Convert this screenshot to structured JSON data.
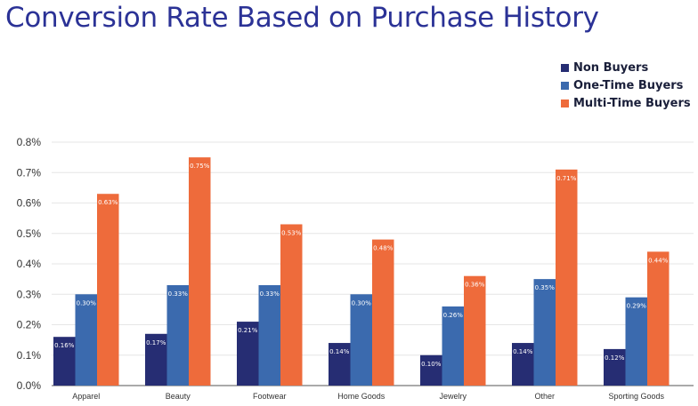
{
  "chart_data": {
    "type": "bar",
    "title": "Conversion Rate Based on Purchase History",
    "xlabel": "",
    "ylabel": "",
    "ylim": [
      0,
      0.8
    ],
    "yticks": [
      "0.0%",
      "0.1%",
      "0.2%",
      "0.3%",
      "0.4%",
      "0.5%",
      "0.6%",
      "0.7%",
      "0.8%"
    ],
    "grid": true,
    "legend_position": "top-right",
    "categories": [
      "Apparel",
      "Beauty",
      "Footwear",
      "Home Goods",
      "Jewelry",
      "Other",
      "Sporting Goods"
    ],
    "series": [
      {
        "name": "Non Buyers",
        "color": "#262d73",
        "values": [
          0.16,
          0.17,
          0.21,
          0.14,
          0.1,
          0.14,
          0.12
        ],
        "labels": [
          "0.16%",
          "0.17%",
          "0.21%",
          "0.14%",
          "0.10%",
          "0.14%",
          "0.12%"
        ]
      },
      {
        "name": "One-Time Buyers",
        "color": "#3b6aae",
        "values": [
          0.3,
          0.33,
          0.33,
          0.3,
          0.26,
          0.35,
          0.29
        ],
        "labels": [
          "0.30%",
          "0.33%",
          "0.33%",
          "0.30%",
          "0.26%",
          "0.35%",
          "0.29%"
        ]
      },
      {
        "name": "Multi-Time Buyers",
        "color": "#ee6b3b",
        "values": [
          0.63,
          0.75,
          0.53,
          0.48,
          0.36,
          0.71,
          0.44
        ],
        "labels": [
          "0.63%",
          "0.75%",
          "0.53%",
          "0.48%",
          "0.36%",
          "0.71%",
          "0.44%"
        ]
      }
    ]
  }
}
